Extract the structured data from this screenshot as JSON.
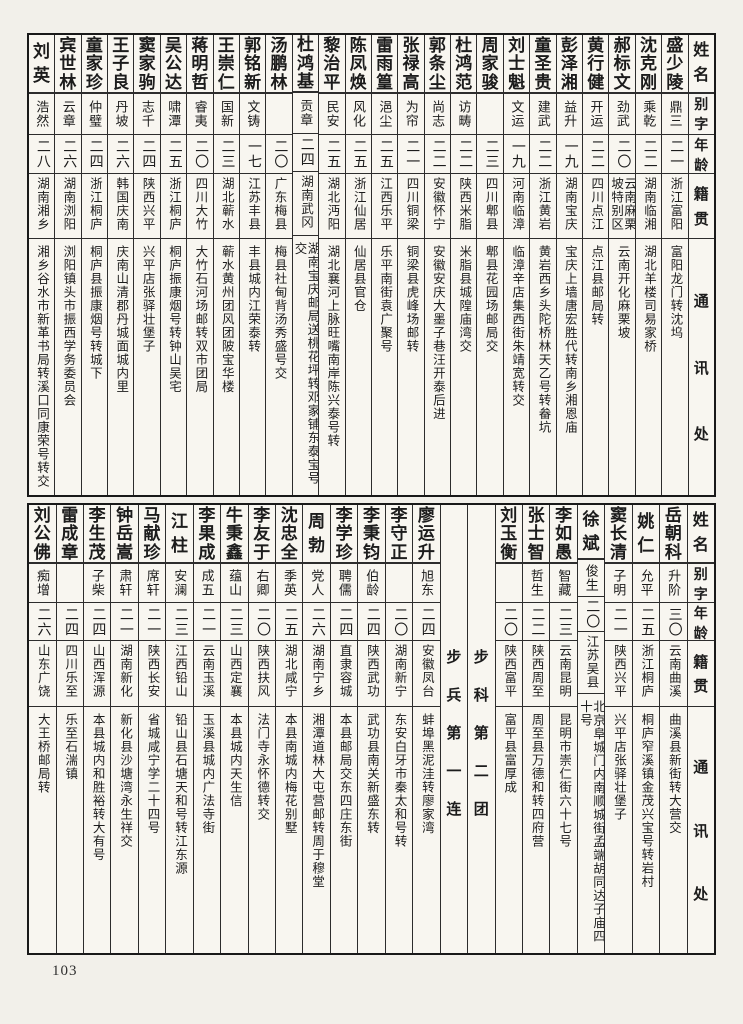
{
  "page_number": "103",
  "row_headers": {
    "name": "姓名",
    "zi": "别字",
    "age": "年龄",
    "origin": "籍贯",
    "addr": "通讯处"
  },
  "tables": [
    {
      "id": "table-top",
      "entries": [
        {
          "name": "盛少陵",
          "zi": "鼎三",
          "age": "二一",
          "origin": "浙江富阳",
          "addr": "富阳龙门转沈坞"
        },
        {
          "name": "沈克刚",
          "zi": "乘乾",
          "age": "二二",
          "origin": "湖南临湘",
          "addr": "湖北羊楼司易家桥"
        },
        {
          "name": "郝标文",
          "zi": "劲武",
          "age": "二〇",
          "origin": "云南麻栗坡特别区",
          "addr": "云南开化麻栗坡"
        },
        {
          "name": "黄行健",
          "zi": "开运",
          "age": "二二",
          "origin": "四川点江",
          "addr": "点江县邮局转"
        },
        {
          "name": "彭泽湘",
          "zi": "益升",
          "age": "一九",
          "origin": "湖南宝庆",
          "addr": "宝庆上墙唐宏胜代转南乡湘恩庙"
        },
        {
          "name": "童圣贵",
          "zi": "建武",
          "age": "二二",
          "origin": "浙江黄岩",
          "addr": "黄岩西乡头陀桥林天乙号转畚坑"
        },
        {
          "name": "刘士魁",
          "zi": "文运",
          "age": "一九",
          "origin": "河南临漳",
          "addr": "临漳辛店集西街朱靖宽转交"
        },
        {
          "name": "周家骏",
          "zi": "",
          "age": "二三",
          "origin": "四川郫县",
          "addr": "郫县花园场邮局交"
        },
        {
          "name": "杜鸿范",
          "zi": "访畴",
          "age": "二二",
          "origin": "陕西米脂",
          "addr": "米脂县城隍庙湾交"
        },
        {
          "name": "郭条尘",
          "zi": "尚志",
          "age": "二二",
          "origin": "安徽怀宁",
          "addr": "安徽安庆大墨子巷汪开泰后进"
        },
        {
          "name": "张禄高",
          "zi": "为帘",
          "age": "二一",
          "origin": "四川铜梁",
          "addr": "铜梁县虎峰场邮转"
        },
        {
          "name": "雷雨篁",
          "zi": "浥尘",
          "age": "二五",
          "origin": "江西乐平",
          "addr": "乐平南街袁广聚号"
        },
        {
          "name": "陈凤焕",
          "zi": "风化",
          "age": "二五",
          "origin": "浙江仙居",
          "addr": "仙居县官仓"
        },
        {
          "name": "黎治平",
          "zi": "民安",
          "age": "二五",
          "origin": "湖北沔阳",
          "addr": "湖北襄河上脉旺嘴南岸陈兴泰号转"
        },
        {
          "name": "杜鸿基",
          "zi": "贡章",
          "age": "二四",
          "origin": "湖南武冈",
          "addr": "湖南宝庆邮局送桃花坪转邓家铺东泰宝号交"
        },
        {
          "name": "汤鹏林",
          "zi": "",
          "age": "二〇",
          "origin": "广东梅县",
          "addr": "梅县社甸背汤秀盛号交"
        },
        {
          "name": "郭铭新",
          "zi": "文铸",
          "age": "一七",
          "origin": "江苏丰县",
          "addr": "丰县城内江荣泰转"
        },
        {
          "name": "王崇仁",
          "zi": "国新",
          "age": "二三",
          "origin": "湖北蕲水",
          "addr": "蕲水黄州团风团陂宝华楼"
        },
        {
          "name": "蒋明哲",
          "zi": "睿夷",
          "age": "二〇",
          "origin": "四川大竹",
          "addr": "大竹石河场邮转双市团局"
        },
        {
          "name": "吴公达",
          "zi": "啸潭",
          "age": "二五",
          "origin": "浙江桐庐",
          "addr": "桐庐振康烟号转钟山吴宅"
        },
        {
          "name": "窦家驹",
          "zi": "志千",
          "age": "二四",
          "origin": "陕西兴平",
          "addr": "兴平店张驿壮堡子"
        },
        {
          "name": "王子良",
          "zi": "丹坡",
          "age": "二六",
          "origin": "韩国庆南",
          "addr": "庆南山清郡丹城面城内里"
        },
        {
          "name": "童家珍",
          "zi": "仲璧",
          "age": "二四",
          "origin": "浙江桐庐",
          "addr": "桐庐县振康烟号转城下"
        },
        {
          "name": "宾世林",
          "zi": "云章",
          "age": "二六",
          "origin": "湖南浏阳",
          "addr": "浏阳镇头市振西学务委员会"
        },
        {
          "name": "刘英",
          "zi": "浩然",
          "age": "二八",
          "origin": "湖南湘乡",
          "addr": "湘乡谷水市新革书局转溪口同康荣号转交"
        }
      ]
    },
    {
      "id": "table-bottom",
      "entries": [
        {
          "name": "岳朝科",
          "zi": "升阶",
          "age": "三〇",
          "origin": "云南曲溪",
          "addr": "曲溪县新街转大营交"
        },
        {
          "name": "姚仁",
          "zi": "允平",
          "age": "二五",
          "origin": "浙江桐庐",
          "addr": "桐庐窄溪镇金茂兴宝号转岩村"
        },
        {
          "name": "窦长清",
          "zi": "子明",
          "age": "二一",
          "origin": "陕西兴平",
          "addr": "兴平店张驿壮堡子"
        },
        {
          "name": "徐斌",
          "zi": "俊生",
          "age": "二〇",
          "origin": "江苏吴县",
          "addr": "北京阜城门内南顺城街孟端胡同达子庙四十号"
        },
        {
          "name": "李如愚",
          "zi": "智藏",
          "age": "二三",
          "origin": "云南昆明",
          "addr": "昆明市崇仁街六十七号"
        },
        {
          "name": "张士智",
          "zi": "哲生",
          "age": "二二",
          "origin": "陕西周至",
          "addr": "周至县万德和转四府营"
        },
        {
          "name": "刘玉衡",
          "zi": "",
          "age": "二〇",
          "origin": "陕西富平",
          "addr": "富平县富厚成"
        },
        {
          "section": "步科第二团"
        },
        {
          "section": "步兵第一连"
        },
        {
          "name": "廖运升",
          "zi": "旭东",
          "age": "二四",
          "origin": "安徽凤台",
          "addr": "蚌埠黑泥洼转廖家湾"
        },
        {
          "name": "李守正",
          "zi": "",
          "age": "二〇",
          "origin": "湖南新宁",
          "addr": "东安白牙市秦太和号转"
        },
        {
          "name": "李秉钧",
          "zi": "伯龄",
          "age": "二四",
          "origin": "陕西武功",
          "addr": "武功县南关新盛东转"
        },
        {
          "name": "李学珍",
          "zi": "聘儒",
          "age": "二四",
          "origin": "直隶容城",
          "addr": "本县邮局交东四庄东街"
        },
        {
          "name": "周勃",
          "zi": "党人",
          "age": "二六",
          "origin": "湖南宁乡",
          "addr": "湘潭道林大屯营邮转周于穆堂"
        },
        {
          "name": "沈忠全",
          "zi": "季英",
          "age": "二五",
          "origin": "湖北咸宁",
          "addr": "本县南城内梅花别墅"
        },
        {
          "name": "李友于",
          "zi": "右卿",
          "age": "二〇",
          "origin": "陕西扶风",
          "addr": "法门寺永怀德转交"
        },
        {
          "name": "牛秉鑫",
          "zi": "蕴山",
          "age": "二三",
          "origin": "山西定襄",
          "addr": "本县城内天生信"
        },
        {
          "name": "李果成",
          "zi": "成五",
          "age": "二一",
          "origin": "云南玉溪",
          "addr": "玉溪县城内广法寺街"
        },
        {
          "name": "江柱",
          "zi": "安澜",
          "age": "二三",
          "origin": "江西铅山",
          "addr": "铅山县石塘天和号转江东源"
        },
        {
          "name": "马献珍",
          "zi": "席轩",
          "age": "二一",
          "origin": "陕西长安",
          "addr": "省城咸宁学二十四号"
        },
        {
          "name": "钟岳嵩",
          "zi": "肃轩",
          "age": "二一",
          "origin": "湖南新化",
          "addr": "新化县沙塘湾永生祥交"
        },
        {
          "name": "李生茂",
          "zi": "子柴",
          "age": "二四",
          "origin": "山西浑源",
          "addr": "本县城内和胜裕转大有号"
        },
        {
          "name": "雷成章",
          "zi": "",
          "age": "二四",
          "origin": "四川乐至",
          "addr": "乐至石湍镇"
        },
        {
          "name": "刘公佛",
          "zi": "痴增",
          "age": "二六",
          "origin": "山东广饶",
          "addr": "大王桥邮局转"
        }
      ]
    }
  ]
}
